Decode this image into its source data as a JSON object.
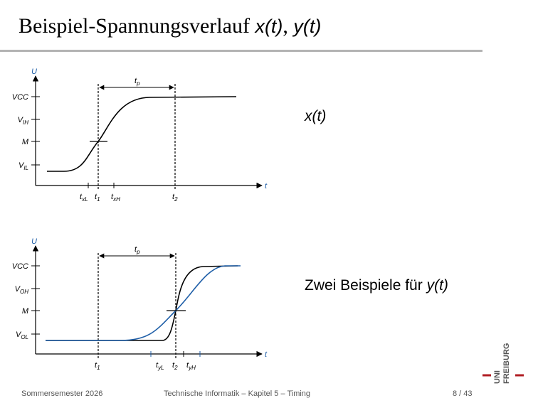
{
  "slide": {
    "title_text": "Beispiel-Spannungsverlauf ",
    "title_math_x": "x(t)",
    "title_sep": ", ",
    "title_math_y": "y(t)"
  },
  "top_diagram": {
    "y_axis": "U",
    "x_axis": "t",
    "levels": [
      "VCC",
      "V",
      "IH",
      "M",
      "V",
      "IL"
    ],
    "interval": "t",
    "interval_sub": "p",
    "ticks": [
      "t",
      "xL",
      "t",
      "1",
      "t",
      "xH",
      "t",
      "2"
    ],
    "description": "x(t)"
  },
  "bottom_diagram": {
    "y_axis": "U",
    "x_axis": "t",
    "levels": [
      "VCC",
      "V",
      "OH",
      "M",
      "V",
      "OL"
    ],
    "interval": "t",
    "interval_sub": "p",
    "ticks": [
      "t",
      "1",
      "t",
      "yL",
      "t",
      "2",
      "t",
      "yH"
    ],
    "description_text": "Zwei Beispiele für ",
    "description_math": "y(t)"
  },
  "colors": {
    "curve": "#000000",
    "second_curve": "#1f5fa8",
    "axis_label": "#1f5fa8",
    "rule": "#b3b3b3"
  },
  "footer": {
    "left": "Sommersemester 2026",
    "center": "Technische Informatik – Kapitel 5 – Timing",
    "page": "8 / 43"
  },
  "logo": {
    "line1": "UNI",
    "line2": "FREIBURG"
  }
}
